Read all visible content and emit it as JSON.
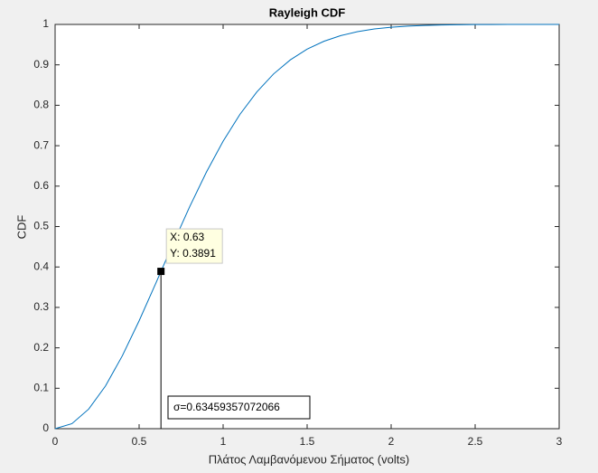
{
  "chart_data": {
    "type": "line",
    "title": "Rayleigh CDF",
    "xlabel": "Πλάτος Λαμβανόμενου Σήματος (volts)",
    "ylabel": "CDF",
    "x": [
      0,
      0.1,
      0.2,
      0.3,
      0.4,
      0.5,
      0.6,
      0.7,
      0.8,
      0.9,
      1.0,
      1.1,
      1.2,
      1.3,
      1.4,
      1.5,
      1.6,
      1.7,
      1.8,
      1.9,
      2.0,
      2.1,
      2.2,
      2.3,
      2.4,
      2.5,
      2.6,
      2.7,
      2.8,
      2.9,
      3.0
    ],
    "values": [
      0,
      0.01234,
      0.04845,
      0.10573,
      0.1802,
      0.2668,
      0.3604,
      0.4558,
      0.5483,
      0.6342,
      0.7111,
      0.7774,
      0.8327,
      0.8774,
      0.9123,
      0.9388,
      0.9583,
      0.9723,
      0.9821,
      0.9887,
      0.993,
      0.9958,
      0.9975,
      0.9986,
      0.9992,
      0.9996,
      0.9998,
      0.9999,
      0.9999,
      1,
      1
    ],
    "color": "#0072bd",
    "xlim": [
      0,
      3
    ],
    "xticks": [
      0,
      0.5,
      1,
      1.5,
      2,
      2.5,
      3
    ],
    "ylim": [
      0,
      1
    ],
    "yticks": [
      0,
      0.1,
      0.2,
      0.3,
      0.4,
      0.5,
      0.6,
      0.7,
      0.8,
      0.9,
      1
    ],
    "grid": false,
    "datatip": {
      "x": {
        "value": 0.63,
        "label": "X: 0.63"
      },
      "y": {
        "value": 0.3891,
        "label": "Y: 0.3891"
      }
    },
    "annotation": "σ=0.63459357072066"
  }
}
